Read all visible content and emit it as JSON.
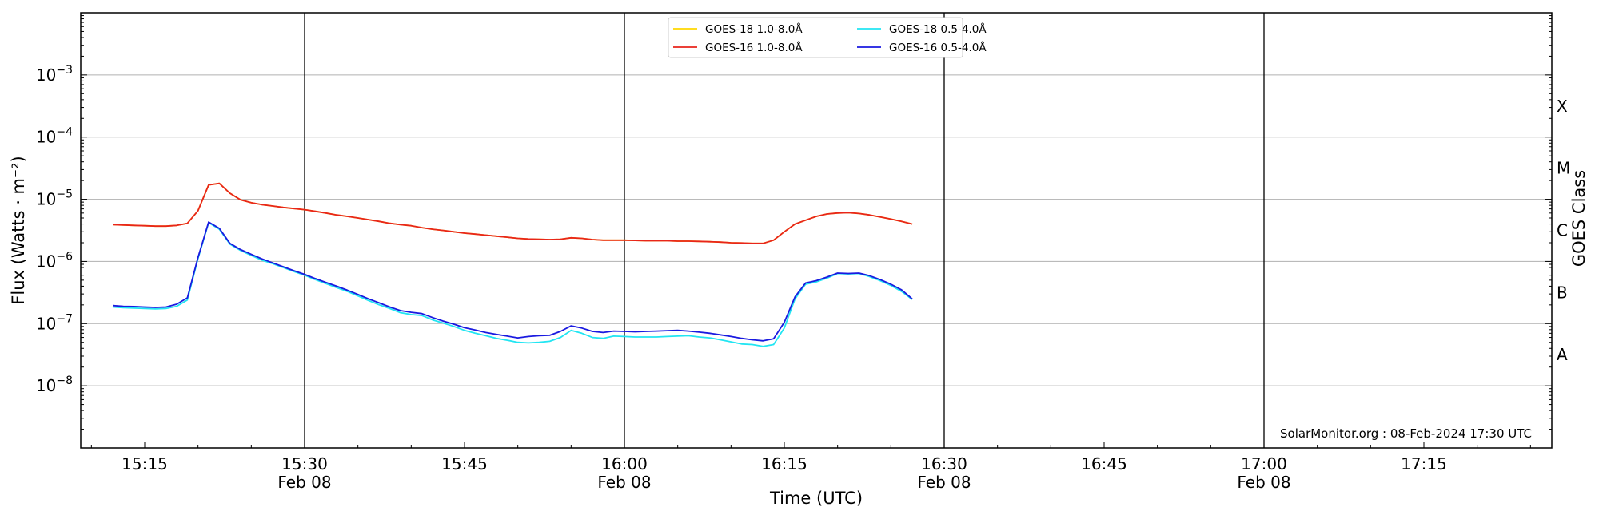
{
  "chart_data": {
    "type": "line",
    "xlabel": "Time (UTC)",
    "ylabel": "Flux (Watts · m⁻²)",
    "y2label": "GOES Class",
    "y_scale": "log",
    "ylim": [
      1e-09,
      0.01
    ],
    "xlim": [
      "15:09",
      "17:27"
    ],
    "grid": "horizontal at decades",
    "legend_position": "top-center",
    "x_tick_labels": [
      {
        "t": 15.25,
        "line1": "15:15",
        "line2": ""
      },
      {
        "t": 15.5,
        "line1": "15:30",
        "line2": "Feb 08"
      },
      {
        "t": 15.75,
        "line1": "15:45",
        "line2": ""
      },
      {
        "t": 16.0,
        "line1": "16:00",
        "line2": "Feb 08"
      },
      {
        "t": 16.25,
        "line1": "16:15",
        "line2": ""
      },
      {
        "t": 16.5,
        "line1": "16:30",
        "line2": "Feb 08"
      },
      {
        "t": 16.75,
        "line1": "16:45",
        "line2": ""
      },
      {
        "t": 17.0,
        "line1": "17:00",
        "line2": "Feb 08"
      },
      {
        "t": 17.25,
        "line1": "17:15",
        "line2": ""
      }
    ],
    "vertical_lines_at": [
      15.5,
      16.0,
      16.5,
      17.0
    ],
    "y_tick_labels": [
      {
        "exp": -8,
        "base": "10",
        "sup": "−8"
      },
      {
        "exp": -7,
        "base": "10",
        "sup": "−7"
      },
      {
        "exp": -6,
        "base": "10",
        "sup": "−6"
      },
      {
        "exp": -5,
        "base": "10",
        "sup": "−5"
      },
      {
        "exp": -4,
        "base": "10",
        "sup": "−4"
      },
      {
        "exp": -3,
        "base": "10",
        "sup": "−3"
      }
    ],
    "goes_classes": [
      {
        "label": "A",
        "exp": -7.5
      },
      {
        "label": "B",
        "exp": -6.5
      },
      {
        "label": "C",
        "exp": -5.5
      },
      {
        "label": "M",
        "exp": -4.5
      },
      {
        "label": "X",
        "exp": -3.5
      }
    ],
    "time_hours": [
      15.2,
      15.2167,
      15.2333,
      15.25,
      15.2667,
      15.2833,
      15.3,
      15.3167,
      15.3333,
      15.35,
      15.3667,
      15.3833,
      15.4,
      15.4167,
      15.4333,
      15.45,
      15.4667,
      15.4833,
      15.5,
      15.5167,
      15.5333,
      15.55,
      15.5667,
      15.5833,
      15.6,
      15.6167,
      15.6333,
      15.65,
      15.6667,
      15.6833,
      15.7,
      15.7167,
      15.7333,
      15.75,
      15.7667,
      15.7833,
      15.8,
      15.8167,
      15.8333,
      15.85,
      15.8667,
      15.8833,
      15.9,
      15.9167,
      15.9333,
      15.95,
      15.9667,
      15.9833,
      16.0,
      16.0167,
      16.0333,
      16.05,
      16.0667,
      16.0833,
      16.1,
      16.1167,
      16.1333,
      16.15,
      16.1667,
      16.1833,
      16.2,
      16.2167,
      16.2333,
      16.25,
      16.2667,
      16.2833,
      16.3,
      16.3167,
      16.3333,
      16.35,
      16.3667,
      16.3833,
      16.4,
      16.4167,
      16.4333,
      16.45
    ],
    "series": [
      {
        "name": "GOES-18 1.0-8.0Å",
        "color": "#ffd700",
        "values": [
          3.9e-06,
          3.85e-06,
          3.8e-06,
          3.75e-06,
          3.7e-06,
          3.7e-06,
          3.8e-06,
          4.1e-06,
          6.5e-06,
          1.7e-05,
          1.8e-05,
          1.25e-05,
          9.8e-06,
          8.8e-06,
          8.2e-06,
          7.8e-06,
          7.4e-06,
          7.1e-06,
          6.8e-06,
          6.4e-06,
          6e-06,
          5.6e-06,
          5.3e-06,
          5e-06,
          4.7e-06,
          4.4e-06,
          4.1e-06,
          3.9e-06,
          3.75e-06,
          3.5e-06,
          3.3e-06,
          3.15e-06,
          3e-06,
          2.85e-06,
          2.75e-06,
          2.65e-06,
          2.55e-06,
          2.45e-06,
          2.35e-06,
          2.3e-06,
          2.28e-06,
          2.25e-06,
          2.28e-06,
          2.4e-06,
          2.35e-06,
          2.25e-06,
          2.2e-06,
          2.2e-06,
          2.2e-06,
          2.18e-06,
          2.15e-06,
          2.15e-06,
          2.15e-06,
          2.12e-06,
          2.12e-06,
          2.1e-06,
          2.08e-06,
          2.05e-06,
          2e-06,
          1.98e-06,
          1.95e-06,
          1.95e-06,
          2.2e-06,
          3e-06,
          4e-06,
          4.6e-06,
          5.3e-06,
          5.8e-06,
          6e-06,
          6.1e-06,
          5.9e-06,
          5.6e-06,
          5.2e-06,
          4.8e-06,
          4.4e-06,
          4e-06
        ]
      },
      {
        "name": "GOES-16 1.0-8.0Å",
        "color": "#e8251b",
        "values": [
          3.9e-06,
          3.85e-06,
          3.8e-06,
          3.75e-06,
          3.7e-06,
          3.7e-06,
          3.8e-06,
          4.1e-06,
          6.5e-06,
          1.7e-05,
          1.8e-05,
          1.25e-05,
          9.8e-06,
          8.8e-06,
          8.2e-06,
          7.8e-06,
          7.4e-06,
          7.1e-06,
          6.8e-06,
          6.4e-06,
          6e-06,
          5.6e-06,
          5.3e-06,
          5e-06,
          4.7e-06,
          4.4e-06,
          4.1e-06,
          3.9e-06,
          3.75e-06,
          3.5e-06,
          3.3e-06,
          3.15e-06,
          3e-06,
          2.85e-06,
          2.75e-06,
          2.65e-06,
          2.55e-06,
          2.45e-06,
          2.35e-06,
          2.3e-06,
          2.28e-06,
          2.25e-06,
          2.28e-06,
          2.4e-06,
          2.35e-06,
          2.25e-06,
          2.2e-06,
          2.2e-06,
          2.2e-06,
          2.18e-06,
          2.15e-06,
          2.15e-06,
          2.15e-06,
          2.12e-06,
          2.12e-06,
          2.1e-06,
          2.08e-06,
          2.05e-06,
          2e-06,
          1.98e-06,
          1.95e-06,
          1.95e-06,
          2.2e-06,
          3e-06,
          4e-06,
          4.6e-06,
          5.3e-06,
          5.8e-06,
          6e-06,
          6.1e-06,
          5.9e-06,
          5.6e-06,
          5.2e-06,
          4.8e-06,
          4.4e-06,
          4e-06
        ]
      },
      {
        "name": "GOES-18 0.5-4.0Å",
        "color": "#22e5f2",
        "values": [
          1.85e-07,
          1.8e-07,
          1.78e-07,
          1.75e-07,
          1.72e-07,
          1.75e-07,
          1.9e-07,
          2.4e-07,
          1.1e-06,
          4.2e-06,
          3.3e-06,
          1.9e-06,
          1.5e-06,
          1.25e-06,
          1.05e-06,
          9.2e-07,
          8e-07,
          6.9e-07,
          6e-07,
          5.1e-07,
          4.4e-07,
          3.8e-07,
          3.3e-07,
          2.8e-07,
          2.35e-07,
          2e-07,
          1.75e-07,
          1.5e-07,
          1.4e-07,
          1.35e-07,
          1.15e-07,
          1.02e-07,
          9e-08,
          7.8e-08,
          7e-08,
          6.4e-08,
          5.8e-08,
          5.4e-08,
          5e-08,
          4.9e-08,
          5e-08,
          5.2e-08,
          6e-08,
          7.8e-08,
          7e-08,
          6e-08,
          5.8e-08,
          6.3e-08,
          6.2e-08,
          6.1e-08,
          6.1e-08,
          6.1e-08,
          6.2e-08,
          6.3e-08,
          6.4e-08,
          6.1e-08,
          5.9e-08,
          5.5e-08,
          5.1e-08,
          4.7e-08,
          4.6e-08,
          4.3e-08,
          4.6e-08,
          8.5e-08,
          2.5e-07,
          4.3e-07,
          4.7e-07,
          5.4e-07,
          6.4e-07,
          6.3e-07,
          6.4e-07,
          5.7e-07,
          4.9e-07,
          4.1e-07,
          3.3e-07,
          2.45e-07
        ]
      },
      {
        "name": "GOES-16 0.5-4.0Å",
        "color": "#1a1ae0",
        "values": [
          1.95e-07,
          1.9e-07,
          1.88e-07,
          1.85e-07,
          1.82e-07,
          1.85e-07,
          2.05e-07,
          2.6e-07,
          1.15e-06,
          4.3e-06,
          3.4e-06,
          1.95e-06,
          1.55e-06,
          1.3e-06,
          1.1e-06,
          9.5e-07,
          8.2e-07,
          7.1e-07,
          6.2e-07,
          5.3e-07,
          4.6e-07,
          4e-07,
          3.45e-07,
          2.95e-07,
          2.5e-07,
          2.15e-07,
          1.85e-07,
          1.62e-07,
          1.52e-07,
          1.45e-07,
          1.25e-07,
          1.1e-07,
          9.8e-08,
          8.6e-08,
          7.9e-08,
          7.2e-08,
          6.7e-08,
          6.3e-08,
          5.9e-08,
          6.2e-08,
          6.4e-08,
          6.5e-08,
          7.5e-08,
          9.2e-08,
          8.5e-08,
          7.5e-08,
          7.2e-08,
          7.6e-08,
          7.5e-08,
          7.4e-08,
          7.5e-08,
          7.6e-08,
          7.7e-08,
          7.8e-08,
          7.6e-08,
          7.3e-08,
          7e-08,
          6.6e-08,
          6.2e-08,
          5.8e-08,
          5.5e-08,
          5.3e-08,
          5.7e-08,
          1.05e-07,
          2.7e-07,
          4.5e-07,
          4.9e-07,
          5.6e-07,
          6.5e-07,
          6.4e-07,
          6.5e-07,
          5.9e-07,
          5.1e-07,
          4.3e-07,
          3.5e-07,
          2.5e-07
        ]
      }
    ],
    "credit": "SolarMonitor.org : 08-Feb-2024 17:30 UTC"
  }
}
